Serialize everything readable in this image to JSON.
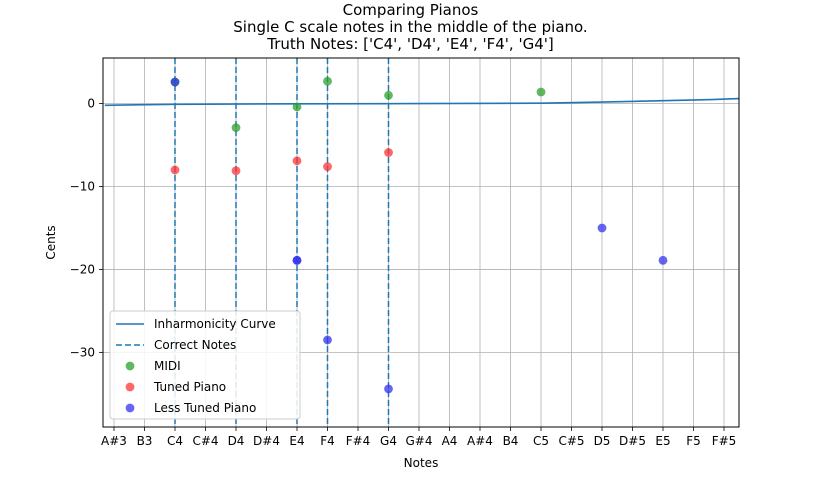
{
  "chart_data": {
    "type": "scatter",
    "title": "Comparing Pianos",
    "subtitle": "Single C scale notes in the middle of the piano.",
    "subtitle2": "Truth Notes: ['C4', 'D4', 'E4', 'F4', 'G4']",
    "xlabel": "Notes",
    "ylabel": "Cents",
    "categories": [
      "A#3",
      "B3",
      "C4",
      "C#4",
      "D4",
      "D#4",
      "E4",
      "F4",
      "F#4",
      "G4",
      "G#4",
      "A4",
      "A#4",
      "B4",
      "C5",
      "C#5",
      "D5",
      "D#5",
      "E5",
      "F5",
      "F#5"
    ],
    "yticks": [
      0,
      -10,
      -20,
      -30
    ],
    "ylim": [
      -39,
      5.5
    ],
    "grid": true,
    "legend_position": "lower-left",
    "inharmonicity": {
      "name": "Inharmonicity Curve",
      "color": "#1f77b4",
      "x": [
        -0.3,
        2,
        6,
        10,
        14,
        16,
        18,
        19.6,
        20.8
      ],
      "y": [
        -0.2,
        -0.08,
        -0.02,
        0.0,
        0.05,
        0.18,
        0.35,
        0.48,
        0.6
      ]
    },
    "correct_notes": {
      "name": "Correct Notes",
      "color": "#1f77b4",
      "x": [
        2,
        4,
        6,
        7,
        9
      ]
    },
    "series": [
      {
        "name": "MIDI",
        "color": "#2ca02c",
        "points": [
          [
            2,
            2.6
          ],
          [
            4,
            -2.9
          ],
          [
            6,
            -0.4
          ],
          [
            7,
            2.7
          ],
          [
            9,
            1.0
          ],
          [
            14,
            1.4
          ]
        ]
      },
      {
        "name": "Tuned Piano",
        "color": "#ff3333",
        "points": [
          [
            2,
            -8.0
          ],
          [
            4,
            -8.1
          ],
          [
            6,
            -6.9
          ],
          [
            7,
            -7.6
          ],
          [
            9,
            -5.9
          ]
        ]
      },
      {
        "name": "Less Tuned Piano",
        "color": "#3333ee",
        "points": [
          [
            2,
            2.6
          ],
          [
            6,
            -18.9
          ],
          [
            6,
            -18.9
          ],
          [
            7,
            -28.5
          ],
          [
            9,
            -34.4
          ],
          [
            16,
            -15.0
          ],
          [
            18,
            -18.9
          ]
        ]
      }
    ]
  }
}
